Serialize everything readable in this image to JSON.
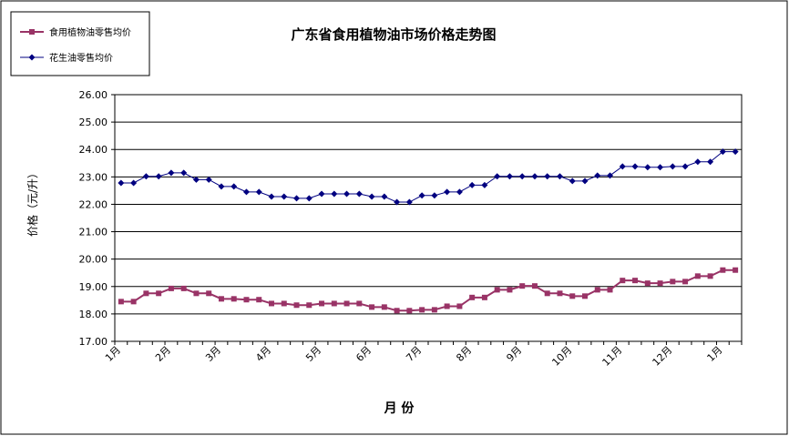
{
  "chart_data": {
    "type": "line",
    "title": "广东省食用植物油市场价格走势图",
    "xlabel": "月  份",
    "ylabel": "价格（元/升）",
    "ylim": [
      17,
      26
    ],
    "yticks": [
      "17.00",
      "18.00",
      "19.00",
      "20.00",
      "21.00",
      "22.00",
      "23.00",
      "24.00",
      "25.00",
      "26.00"
    ],
    "month_labels": [
      "1月",
      "2月",
      "3月",
      "4月",
      "5月",
      "6月",
      "7月",
      "8月",
      "9月",
      "10月",
      "11月",
      "12月",
      "1月"
    ],
    "month_label_positions": [
      0,
      4,
      8,
      12,
      16,
      20,
      24,
      28,
      32,
      36,
      40,
      44,
      48
    ],
    "grid": true,
    "legend_position": "top-left",
    "series": [
      {
        "name": "食用植物油零售均价",
        "color": "#993366",
        "marker": "square",
        "values": [
          18.45,
          18.45,
          18.75,
          18.75,
          18.93,
          18.93,
          18.75,
          18.75,
          18.55,
          18.55,
          18.52,
          18.52,
          18.38,
          18.38,
          18.32,
          18.32,
          18.38,
          18.38,
          18.38,
          18.38,
          18.25,
          18.25,
          18.12,
          18.12,
          18.15,
          18.15,
          18.28,
          18.28,
          18.6,
          18.6,
          18.88,
          18.88,
          19.02,
          19.02,
          18.75,
          18.75,
          18.65,
          18.65,
          18.88,
          18.88,
          19.22,
          19.22,
          19.12,
          19.12,
          19.18,
          19.18,
          19.38,
          19.38,
          19.6,
          19.6
        ]
      },
      {
        "name": "花生油零售均价",
        "color": "#000080",
        "marker": "diamond",
        "values": [
          22.78,
          22.78,
          23.02,
          23.02,
          23.15,
          23.15,
          22.9,
          22.9,
          22.65,
          22.65,
          22.45,
          22.45,
          22.28,
          22.28,
          22.22,
          22.22,
          22.38,
          22.38,
          22.38,
          22.38,
          22.28,
          22.28,
          22.08,
          22.08,
          22.32,
          22.32,
          22.45,
          22.45,
          22.7,
          22.7,
          23.02,
          23.02,
          23.02,
          23.02,
          23.02,
          23.02,
          22.85,
          22.85,
          23.05,
          23.05,
          23.38,
          23.38,
          23.35,
          23.35,
          23.38,
          23.38,
          23.55,
          23.55,
          23.92,
          23.92
        ]
      }
    ]
  }
}
